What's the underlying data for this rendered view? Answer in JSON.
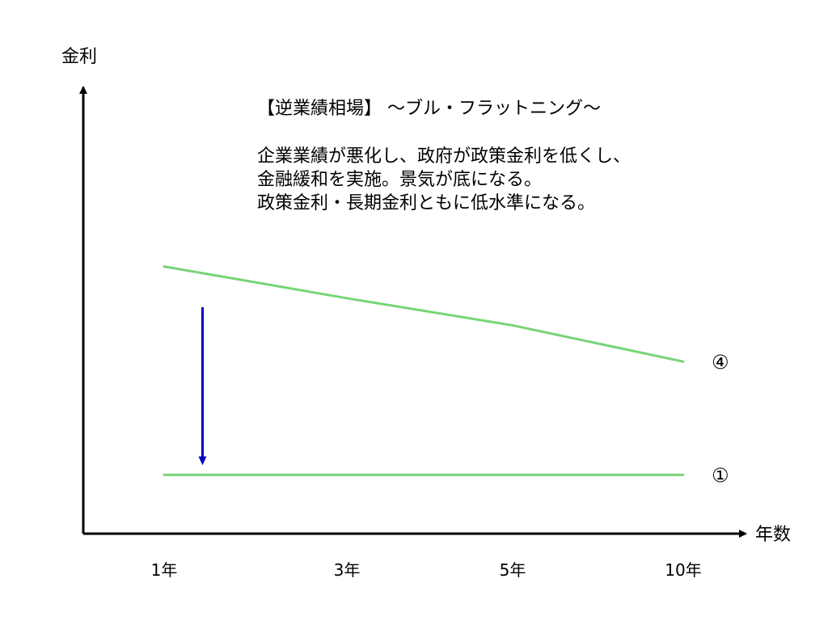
{
  "chart_data": {
    "type": "line",
    "title": "【逆業績相場】 ～ブル・フラットニング～",
    "description_lines": [
      "企業業績が悪化し、政府が政策金利を低くし、",
      "金融緩和を実施。景気が底になる。",
      "政策金利・長期金利ともに低水準になる。"
    ],
    "xlabel": "年数",
    "ylabel": "金利",
    "categories": [
      "1年",
      "3年",
      "5年",
      "10年"
    ],
    "ylim": [
      0,
      10
    ],
    "series": [
      {
        "name": "④",
        "values": [
          5.9,
          5.2,
          4.6,
          3.8
        ],
        "color": "#77d477"
      },
      {
        "name": "①",
        "values": [
          1.3,
          1.3,
          1.3,
          1.3
        ],
        "color": "#77d477"
      }
    ],
    "annotations": [
      {
        "type": "arrow",
        "category": "1年",
        "category_offset": 0.21,
        "from_y": 5.0,
        "to_y": 1.6,
        "color": "#0000c0"
      }
    ],
    "grid": false,
    "legend": "none"
  }
}
